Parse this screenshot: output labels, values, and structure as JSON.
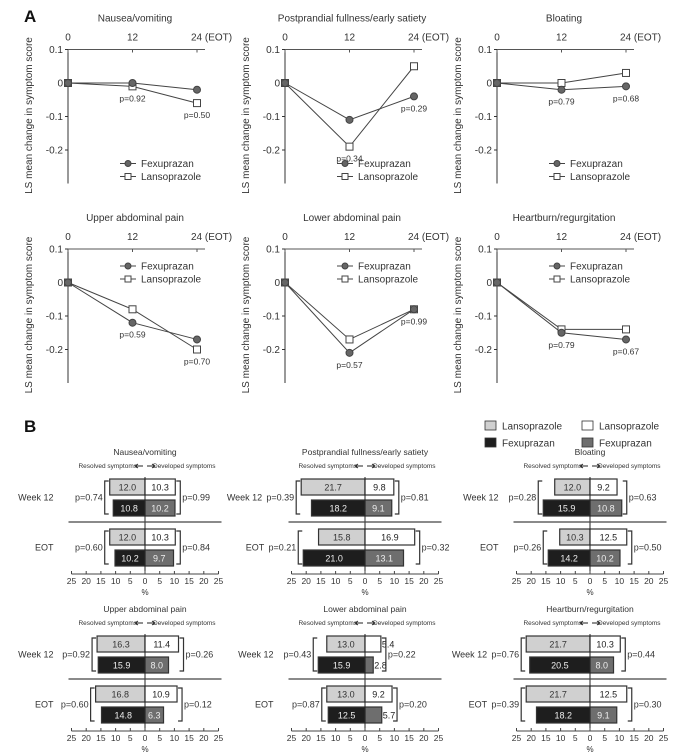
{
  "chart_data": [
    {
      "panel": "A",
      "type": "line",
      "x": [
        "0",
        "12",
        "24 (EOT)"
      ],
      "ylabel": "LS mean change in symptom score",
      "ylim": [
        -0.3,
        0.1
      ],
      "yticks": [
        "0.1",
        "0",
        "-0.1",
        "-0.2"
      ],
      "legend": [
        "Fexuprazan",
        "Lansoprazole"
      ],
      "charts": [
        {
          "title": "Nausea/vomiting",
          "fexuprazan": [
            0,
            0,
            -0.02
          ],
          "lansoprazole": [
            0,
            -0.01,
            -0.06
          ],
          "p": [
            "",
            "p=0.92",
            "p=0.50"
          ],
          "legend_pos": "bottom"
        },
        {
          "title": "Postprandial fullness/early satiety",
          "fexuprazan": [
            0,
            -0.11,
            -0.04
          ],
          "lansoprazole": [
            0,
            -0.19,
            0.05
          ],
          "p": [
            "",
            "p=0.34",
            "p=0.29"
          ],
          "legend_pos": "bottom"
        },
        {
          "title": "Bloating",
          "fexuprazan": [
            0,
            -0.02,
            -0.01
          ],
          "lansoprazole": [
            0,
            0,
            0.03
          ],
          "p": [
            "",
            "p=0.79",
            "p=0.68"
          ],
          "legend_pos": "bottom"
        },
        {
          "title": "Upper abdominal pain",
          "fexuprazan": [
            0,
            -0.12,
            -0.17
          ],
          "lansoprazole": [
            0,
            -0.08,
            -0.2
          ],
          "p": [
            "",
            "p=0.59",
            "p=0.70"
          ],
          "legend_pos": "top"
        },
        {
          "title": "Lower abdominal pain",
          "fexuprazan": [
            0,
            -0.21,
            -0.08
          ],
          "lansoprazole": [
            0,
            -0.17,
            -0.08
          ],
          "p": [
            "",
            "p=0.57",
            "p=0.99"
          ],
          "legend_pos": "top"
        },
        {
          "title": "Heartburn/regurgitation",
          "fexuprazan": [
            0,
            -0.15,
            -0.17
          ],
          "lansoprazole": [
            0,
            -0.14,
            -0.14
          ],
          "p": [
            "",
            "p=0.79",
            "p=0.67"
          ],
          "legend_pos": "top"
        }
      ]
    },
    {
      "panel": "B",
      "type": "bar",
      "orientation": "horizontal-diverging",
      "xlabel": "%",
      "xlim": [
        -25,
        25
      ],
      "xticks": [
        "25",
        "20",
        "15",
        "10",
        "5",
        "0",
        "5",
        "10",
        "15",
        "20",
        "25"
      ],
      "direction_left": "Resolved symptoms",
      "direction_right": "Developed symptoms",
      "rows": [
        "Week 12",
        "EOT"
      ],
      "legend": {
        "resolved": [
          {
            "name": "Lansoprazole",
            "color": "#d0d0d0"
          },
          {
            "name": "Fexuprazan",
            "color": "#1e1e1e"
          }
        ],
        "developed": [
          {
            "name": "Lansoprazole",
            "color": "#ffffff"
          },
          {
            "name": "Fexuprazan",
            "color": "#6e6e6e"
          }
        ]
      },
      "charts": [
        {
          "title": "Nausea/vomiting",
          "data": [
            {
              "lans": [
                12.0,
                10.3
              ],
              "fexu": [
                10.8,
                10.2
              ],
              "p": [
                "p=0.74",
                "p=0.99"
              ]
            },
            {
              "lans": [
                12.0,
                10.3
              ],
              "fexu": [
                10.2,
                9.7
              ],
              "p": [
                "p=0.60",
                "p=0.84"
              ]
            }
          ]
        },
        {
          "title": "Postprandial fullness/early satiety",
          "data": [
            {
              "lans": [
                21.7,
                9.8
              ],
              "fexu": [
                18.2,
                9.1
              ],
              "p": [
                "p=0.39",
                "p=0.81"
              ]
            },
            {
              "lans": [
                15.8,
                16.9
              ],
              "fexu": [
                21.0,
                13.1
              ],
              "p": [
                "p=0.21",
                "p=0.32"
              ]
            }
          ]
        },
        {
          "title": "Bloating",
          "data": [
            {
              "lans": [
                12.0,
                9.2
              ],
              "fexu": [
                15.9,
                10.8
              ],
              "p": [
                "p=0.28",
                "p=0.63"
              ]
            },
            {
              "lans": [
                10.3,
                12.5
              ],
              "fexu": [
                14.2,
                10.2
              ],
              "p": [
                "p=0.26",
                "p=0.50"
              ]
            }
          ]
        },
        {
          "title": "Upper abdominal pain",
          "data": [
            {
              "lans": [
                16.3,
                11.4
              ],
              "fexu": [
                15.9,
                8.0
              ],
              "p": [
                "p=0.92",
                "p=0.26"
              ]
            },
            {
              "lans": [
                16.8,
                10.9
              ],
              "fexu": [
                14.8,
                6.3
              ],
              "p": [
                "p=0.60",
                "p=0.12"
              ]
            }
          ]
        },
        {
          "title": "Lower abdominal pain",
          "data": [
            {
              "lans": [
                13.0,
                5.4
              ],
              "fexu": [
                15.9,
                2.8
              ],
              "p": [
                "p=0.43",
                "p=0.22"
              ]
            },
            {
              "lans": [
                13.0,
                9.2
              ],
              "fexu": [
                12.5,
                5.7
              ],
              "p": [
                "p=0.87",
                "p=0.20"
              ]
            }
          ]
        },
        {
          "title": "Heartburn/regurgitation",
          "data": [
            {
              "lans": [
                21.7,
                10.3
              ],
              "fexu": [
                20.5,
                8.0
              ],
              "p": [
                "p=0.76",
                "p=0.44"
              ]
            },
            {
              "lans": [
                21.7,
                12.5
              ],
              "fexu": [
                18.2,
                9.1
              ],
              "p": [
                "p=0.39",
                "p=0.30"
              ]
            }
          ]
        }
      ]
    }
  ],
  "panel_labels": [
    "A",
    "B"
  ]
}
